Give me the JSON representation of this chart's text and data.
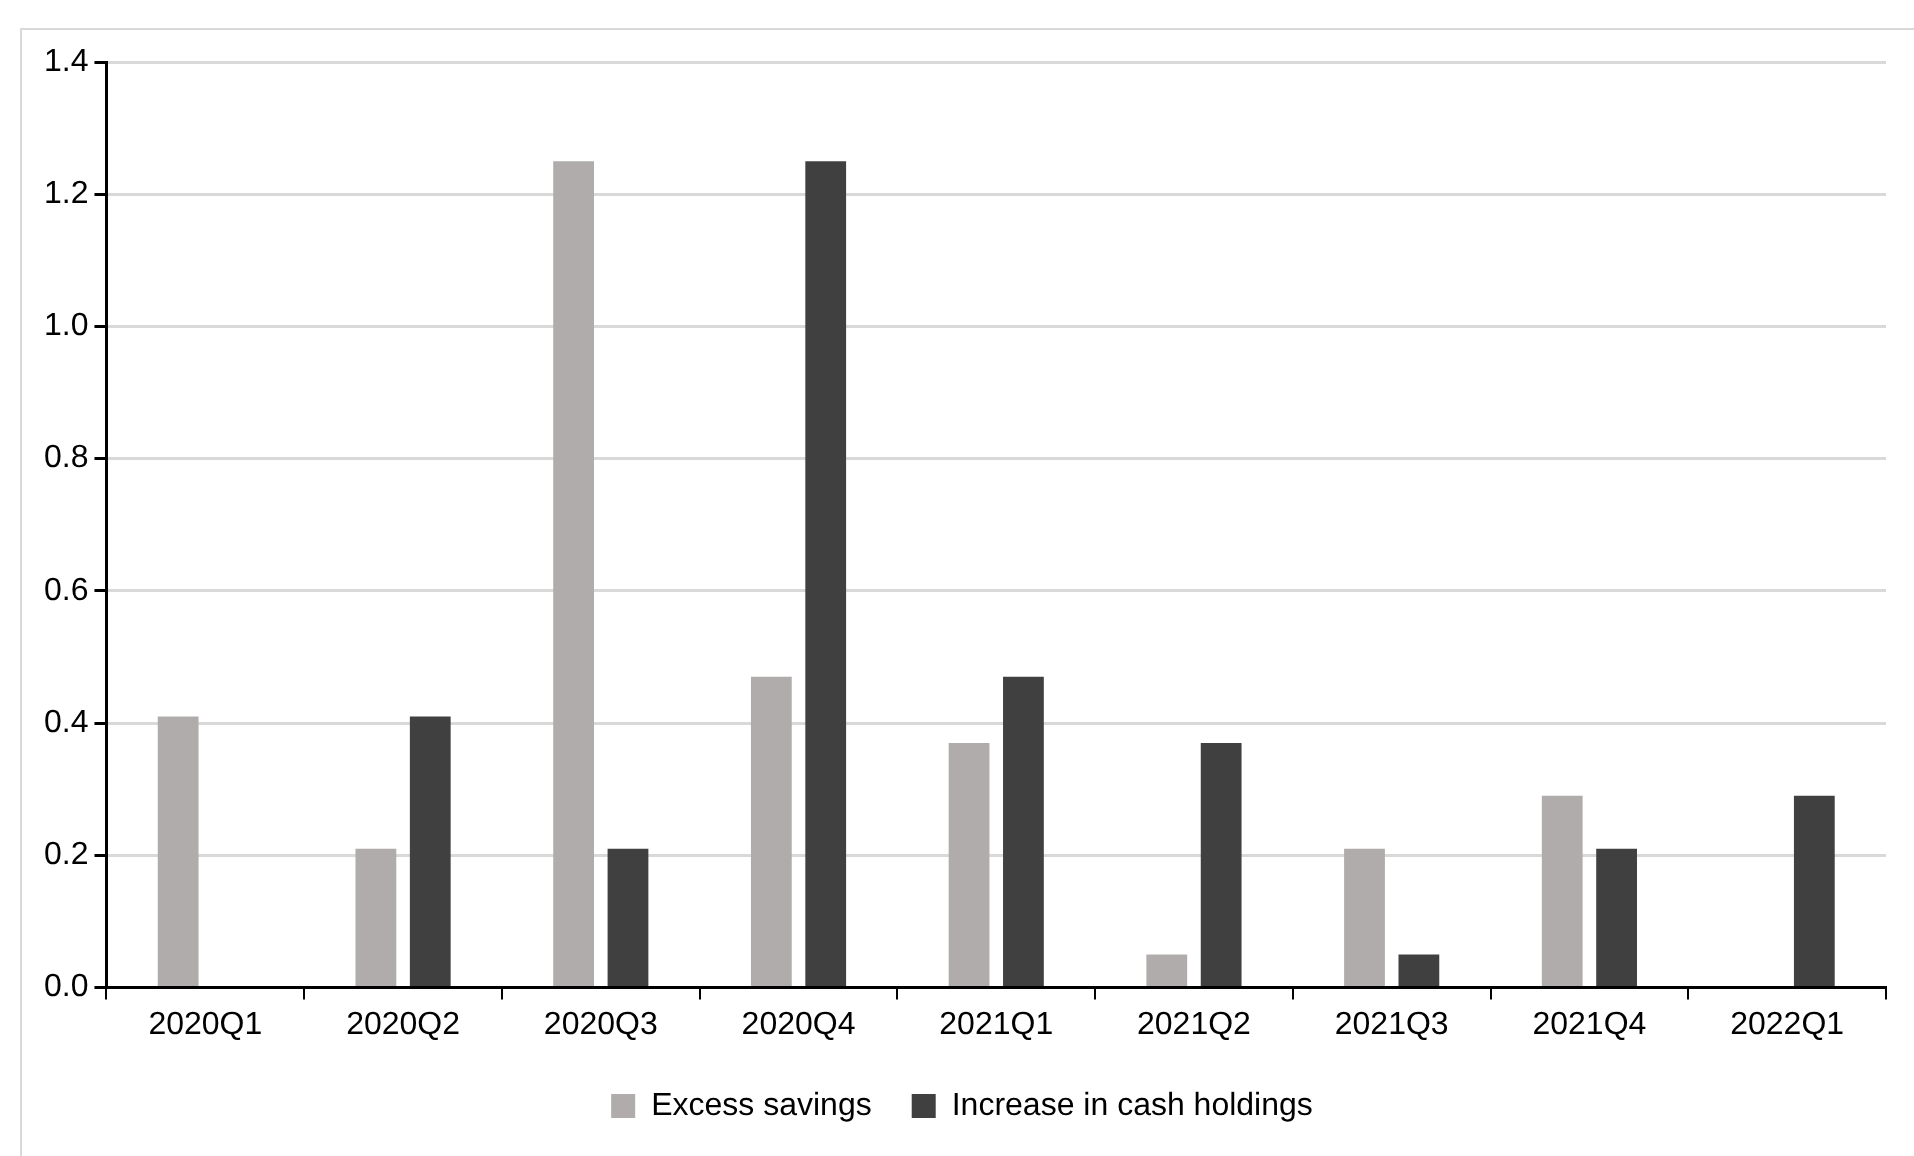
{
  "chart_data": {
    "type": "bar",
    "categories": [
      "2020Q1",
      "2020Q2",
      "2020Q3",
      "2020Q4",
      "2021Q1",
      "2021Q2",
      "2021Q3",
      "2021Q4",
      "2022Q1"
    ],
    "series": [
      {
        "name": "Excess savings",
        "color": "#afacab",
        "values": [
          0.41,
          0.21,
          1.25,
          0.47,
          0.37,
          0.05,
          0.21,
          0.29,
          null
        ]
      },
      {
        "name": "Increase in cash holdings",
        "color": "#404040",
        "values": [
          null,
          0.41,
          0.21,
          1.25,
          0.47,
          0.37,
          0.05,
          0.21,
          0.29
        ]
      }
    ],
    "ylim": [
      0,
      1.4
    ],
    "yticks": [
      {
        "value": 0,
        "label": "0.0"
      },
      0.2,
      0.4,
      0.6,
      0.8,
      {
        "value": 1,
        "label": "1.0"
      },
      1.2,
      1.4
    ],
    "grid": "y",
    "legend": "bottom"
  }
}
